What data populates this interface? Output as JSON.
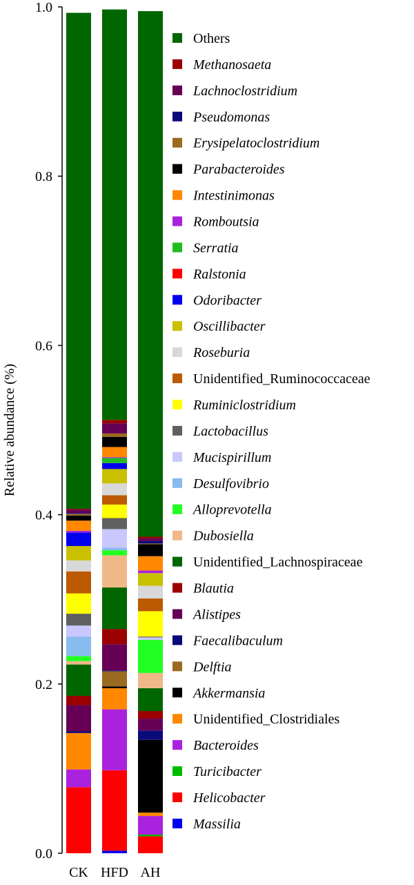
{
  "chart_data": {
    "type": "bar",
    "stacked": true,
    "categories": [
      "CK",
      "HFD",
      "AH"
    ],
    "ylabel": "Relative abundance (%)",
    "ylim": [
      0,
      1.0
    ],
    "yticks": [
      "0.0",
      "0.2",
      "0.4",
      "0.6",
      "0.8",
      "1.0"
    ],
    "grid": false,
    "legend_position": "right",
    "series": [
      {
        "name": "Massilia",
        "italic": true,
        "color": "#0000ee",
        "values": [
          0.0,
          0.003,
          0.0
        ]
      },
      {
        "name": "Helicobacter",
        "italic": true,
        "color": "#ff0000",
        "values": [
          0.078,
          0.095,
          0.02
        ]
      },
      {
        "name": "Turicibacter",
        "italic": true,
        "color": "#00bb00",
        "values": [
          0.0,
          0.0,
          0.002
        ]
      },
      {
        "name": "Bacteroides",
        "italic": true,
        "color": "#aa22dd",
        "values": [
          0.021,
          0.072,
          0.022
        ]
      },
      {
        "name": "Unidentified_Clostridiales",
        "italic": false,
        "color": "#ff8800",
        "values": [
          0.043,
          0.025,
          0.004
        ]
      },
      {
        "name": "Akkermansia",
        "italic": true,
        "color": "#000000",
        "values": [
          0.0,
          0.002,
          0.086
        ]
      },
      {
        "name": "Delftia",
        "italic": true,
        "color": "#9a6a20",
        "values": [
          0.0,
          0.018,
          0.0
        ]
      },
      {
        "name": "Faecalibaculum",
        "italic": true,
        "color": "#0a0a7a",
        "values": [
          0.002,
          0.001,
          0.011
        ]
      },
      {
        "name": "Alistipes",
        "italic": true,
        "color": "#660055",
        "values": [
          0.031,
          0.031,
          0.014
        ]
      },
      {
        "name": "Blautia",
        "italic": true,
        "color": "#9a0000",
        "values": [
          0.011,
          0.018,
          0.009
        ]
      },
      {
        "name": "Unidentified_Lachnospiraceae",
        "italic": false,
        "color": "#006600",
        "values": [
          0.037,
          0.049,
          0.027
        ]
      },
      {
        "name": "Dubosiella",
        "italic": true,
        "color": "#f0b888",
        "values": [
          0.004,
          0.038,
          0.018
        ]
      },
      {
        "name": "Alloprevotella",
        "italic": true,
        "color": "#22ff22",
        "values": [
          0.006,
          0.006,
          0.039
        ]
      },
      {
        "name": "Desulfovibrio",
        "italic": true,
        "color": "#88bbee",
        "values": [
          0.023,
          0.003,
          0.0
        ]
      },
      {
        "name": "Mucispirillum",
        "italic": true,
        "color": "#c8c8ff",
        "values": [
          0.013,
          0.022,
          0.003
        ]
      },
      {
        "name": "Lactobacillus",
        "italic": true,
        "color": "#606060",
        "values": [
          0.014,
          0.013,
          0.001
        ]
      },
      {
        "name": "Ruminiclostridium",
        "italic": true,
        "color": "#ffff00",
        "values": [
          0.024,
          0.016,
          0.03
        ]
      },
      {
        "name": "Unidentified_Ruminococcaceae",
        "italic": false,
        "color": "#bb5a00",
        "values": [
          0.026,
          0.011,
          0.015
        ]
      },
      {
        "name": "Roseburia",
        "italic": true,
        "color": "#d8d8d8",
        "values": [
          0.013,
          0.014,
          0.015
        ]
      },
      {
        "name": "Oscillibacter",
        "italic": true,
        "color": "#c8c000",
        "values": [
          0.017,
          0.017,
          0.015
        ]
      },
      {
        "name": "Odoribacter",
        "italic": true,
        "color": "#0000ee",
        "values": [
          0.016,
          0.007,
          0.0
        ]
      },
      {
        "name": "Ralstonia",
        "italic": true,
        "color": "#ff0000",
        "values": [
          0.0,
          0.0,
          0.0
        ]
      },
      {
        "name": "Serratia",
        "italic": true,
        "color": "#22bb22",
        "values": [
          0.0,
          0.006,
          0.0
        ]
      },
      {
        "name": "Romboutsia",
        "italic": true,
        "color": "#aa22dd",
        "values": [
          0.002,
          0.001,
          0.003
        ]
      },
      {
        "name": "Intestinimonas",
        "italic": true,
        "color": "#ff8800",
        "values": [
          0.012,
          0.012,
          0.017
        ]
      },
      {
        "name": "Parabacteroides",
        "italic": true,
        "color": "#000000",
        "values": [
          0.006,
          0.012,
          0.014
        ]
      },
      {
        "name": "Erysipelatoclostridium",
        "italic": true,
        "color": "#9a6a20",
        "values": [
          0.002,
          0.004,
          0.001
        ]
      },
      {
        "name": "Pseudomonas",
        "italic": true,
        "color": "#0a0a7a",
        "values": [
          0.001,
          0.0,
          0.003
        ]
      },
      {
        "name": "Lachnoclostridium",
        "italic": true,
        "color": "#660055",
        "values": [
          0.004,
          0.012,
          0.003
        ]
      },
      {
        "name": "Methanosaeta",
        "italic": true,
        "color": "#9a0000",
        "values": [
          0.001,
          0.004,
          0.002
        ]
      },
      {
        "name": "Others",
        "italic": false,
        "color": "#006600",
        "values": [
          0.586,
          0.485,
          0.621
        ]
      }
    ]
  }
}
